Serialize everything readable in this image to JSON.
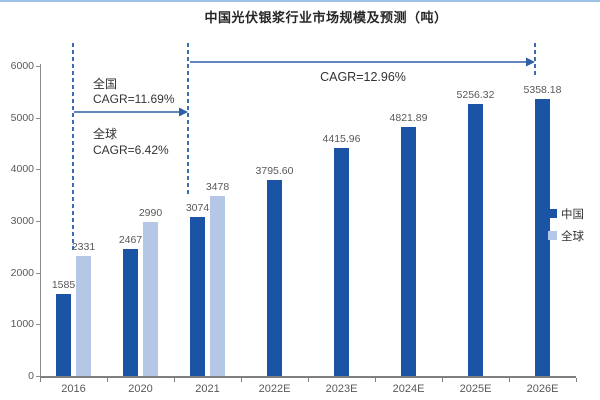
{
  "title": "中国光伏银浆行业市场规模及预测（吨）",
  "chart_data": {
    "type": "bar",
    "categories": [
      "2016",
      "2020",
      "2021",
      "2022E",
      "2023E",
      "2024E",
      "2025E",
      "2026E"
    ],
    "series": [
      {
        "name": "中国",
        "color": "#1B53A5",
        "values": [
          1585,
          2467,
          3074,
          3795.6,
          4415.96,
          4821.89,
          5256.32,
          5358.18
        ],
        "labels": [
          "1585",
          "2467",
          "3074",
          "3795.60",
          "4415.96",
          "4821.89",
          "5256.32",
          "5358.18"
        ]
      },
      {
        "name": "全球",
        "color": "#B4C7E7",
        "values": [
          2331,
          2990,
          3478,
          null,
          null,
          null,
          null,
          null
        ],
        "labels": [
          "2331",
          "2990",
          "3478",
          "",
          "",
          "",
          "",
          ""
        ]
      }
    ],
    "title": "中国光伏银浆行业市场规模及预测（吨）",
    "xlabel": "",
    "ylabel": "",
    "ylim": [
      0,
      6000
    ],
    "yticks": [
      0,
      1000,
      2000,
      3000,
      4000,
      5000,
      6000
    ],
    "grid": false,
    "legend_position": "right"
  },
  "annotations": {
    "national_label": "全国",
    "national_cagr": "CAGR=11.69%",
    "global_label": "全球",
    "global_cagr": "CAGR=6.42%",
    "forecast_cagr": "CAGR=12.96%"
  },
  "colors": {
    "china_bar": "#1B53A5",
    "global_bar": "#B4C7E7",
    "annotation_blue": "#2E5FA8",
    "dashed_blue": "#3A6DB5",
    "axis_gray": "#8C8C8C",
    "label_gray": "#595959",
    "title_color": "#262626",
    "top_border": "#9DC3E6"
  }
}
